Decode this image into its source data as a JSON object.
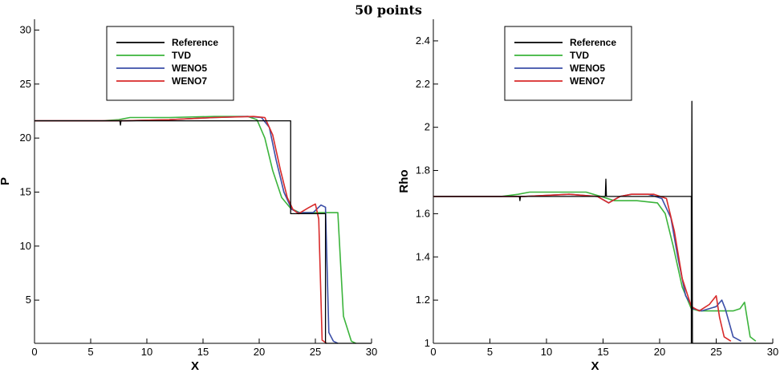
{
  "figure": {
    "title": "50 points"
  },
  "chart_data": [
    {
      "type": "line",
      "title": "",
      "xlabel": "X",
      "ylabel": "P",
      "xlim": [
        0,
        30
      ],
      "ylim": [
        1,
        31
      ],
      "xticks": [
        0,
        5,
        10,
        15,
        20,
        25,
        30
      ],
      "yticks": [
        5,
        10,
        15,
        20,
        25,
        30
      ],
      "grid": false,
      "legend_position": "top-center",
      "series": [
        {
          "name": "Reference",
          "color": "#000000",
          "x": [
            0,
            7.6,
            7.65,
            7.7,
            22.8,
            22.8,
            25.9,
            25.9,
            28.8,
            28.8,
            30
          ],
          "y": [
            21.6,
            21.6,
            21.2,
            21.6,
            21.6,
            13.0,
            13.0,
            1.0,
            1.0,
            1.0,
            1.0
          ]
        },
        {
          "name": "TVD",
          "color": "#3cb43c",
          "x": [
            0,
            6,
            7.5,
            8.5,
            12,
            16,
            19,
            19.8,
            20.5,
            21.2,
            22.0,
            22.8,
            23.6,
            24.5,
            26.5,
            27.0,
            27.5,
            28.2,
            28.6
          ],
          "y": [
            21.6,
            21.6,
            21.7,
            21.9,
            21.9,
            22.0,
            22.0,
            21.7,
            20.0,
            17.0,
            14.5,
            13.5,
            13.1,
            13.1,
            13.1,
            13.1,
            3.5,
            1.2,
            1.0
          ]
        },
        {
          "name": "WENO5",
          "color": "#3c4fa8",
          "x": [
            0,
            8,
            12,
            16,
            19,
            20.2,
            20.9,
            21.5,
            22.2,
            22.9,
            23.5,
            24.8,
            25.5,
            25.9,
            26.2,
            26.6,
            27.0
          ],
          "y": [
            21.6,
            21.6,
            21.7,
            21.9,
            22.0,
            21.9,
            21.0,
            18.0,
            15.0,
            13.4,
            13.1,
            13.1,
            13.8,
            13.6,
            2.0,
            1.2,
            1.0
          ]
        },
        {
          "name": "WENO7",
          "color": "#d82a2a",
          "x": [
            0,
            8,
            12,
            16,
            19.5,
            20.5,
            21.2,
            21.9,
            22.5,
            23.0,
            23.5,
            24.3,
            25.0,
            25.3,
            25.6,
            26.0
          ],
          "y": [
            21.6,
            21.6,
            21.7,
            21.9,
            22.0,
            21.9,
            20.3,
            17.0,
            14.5,
            13.4,
            13.0,
            13.5,
            13.9,
            12.5,
            1.3,
            1.0
          ]
        }
      ]
    },
    {
      "type": "line",
      "title": "",
      "xlabel": "X",
      "ylabel": "Rho",
      "xlim": [
        0,
        30
      ],
      "ylim": [
        1,
        2.5
      ],
      "xticks": [
        0,
        5,
        10,
        15,
        20,
        25,
        30
      ],
      "yticks": [
        1,
        1.2,
        1.4,
        1.6,
        1.8,
        2,
        2.2,
        2.4
      ],
      "grid": false,
      "legend_position": "top-center",
      "series": [
        {
          "name": "Reference",
          "color": "#000000",
          "x": [
            0,
            7.6,
            7.65,
            7.7,
            15.2,
            15.25,
            15.3,
            22.8,
            22.8,
            22.85,
            22.9,
            30
          ],
          "y": [
            1.68,
            1.68,
            1.66,
            1.68,
            1.68,
            1.76,
            1.68,
            1.68,
            1.0,
            2.12,
            1.0,
            1.0
          ]
        },
        {
          "name": "TVD",
          "color": "#3cb43c",
          "x": [
            0,
            6,
            7.5,
            8.5,
            12,
            13.5,
            14.8,
            16,
            18,
            19.8,
            20.5,
            21.2,
            22,
            22.8,
            23.5,
            24.5,
            26.5,
            27.1,
            27.5,
            28,
            28.5
          ],
          "y": [
            1.68,
            1.68,
            1.69,
            1.7,
            1.7,
            1.7,
            1.68,
            1.66,
            1.66,
            1.65,
            1.6,
            1.45,
            1.26,
            1.16,
            1.15,
            1.15,
            1.15,
            1.16,
            1.19,
            1.03,
            1.01
          ]
        },
        {
          "name": "WENO5",
          "color": "#3c4fa8",
          "x": [
            0,
            8,
            12,
            14.5,
            15.5,
            16.5,
            17.5,
            19,
            20.2,
            21,
            21.6,
            22.3,
            23.0,
            23.7,
            25.0,
            25.5,
            25.8,
            26.5,
            27.2
          ],
          "y": [
            1.68,
            1.68,
            1.69,
            1.68,
            1.65,
            1.68,
            1.69,
            1.69,
            1.67,
            1.58,
            1.4,
            1.22,
            1.16,
            1.15,
            1.17,
            1.2,
            1.16,
            1.03,
            1.01
          ]
        },
        {
          "name": "WENO7",
          "color": "#d82a2a",
          "x": [
            0,
            8,
            12,
            14.5,
            15.5,
            16.5,
            17.5,
            19.5,
            20.6,
            21.3,
            22.0,
            22.8,
            23.5,
            24.4,
            25.0,
            25.3,
            25.7,
            26.3
          ],
          "y": [
            1.68,
            1.68,
            1.69,
            1.68,
            1.65,
            1.68,
            1.69,
            1.69,
            1.67,
            1.52,
            1.3,
            1.17,
            1.15,
            1.18,
            1.22,
            1.12,
            1.03,
            1.01
          ]
        }
      ]
    }
  ]
}
